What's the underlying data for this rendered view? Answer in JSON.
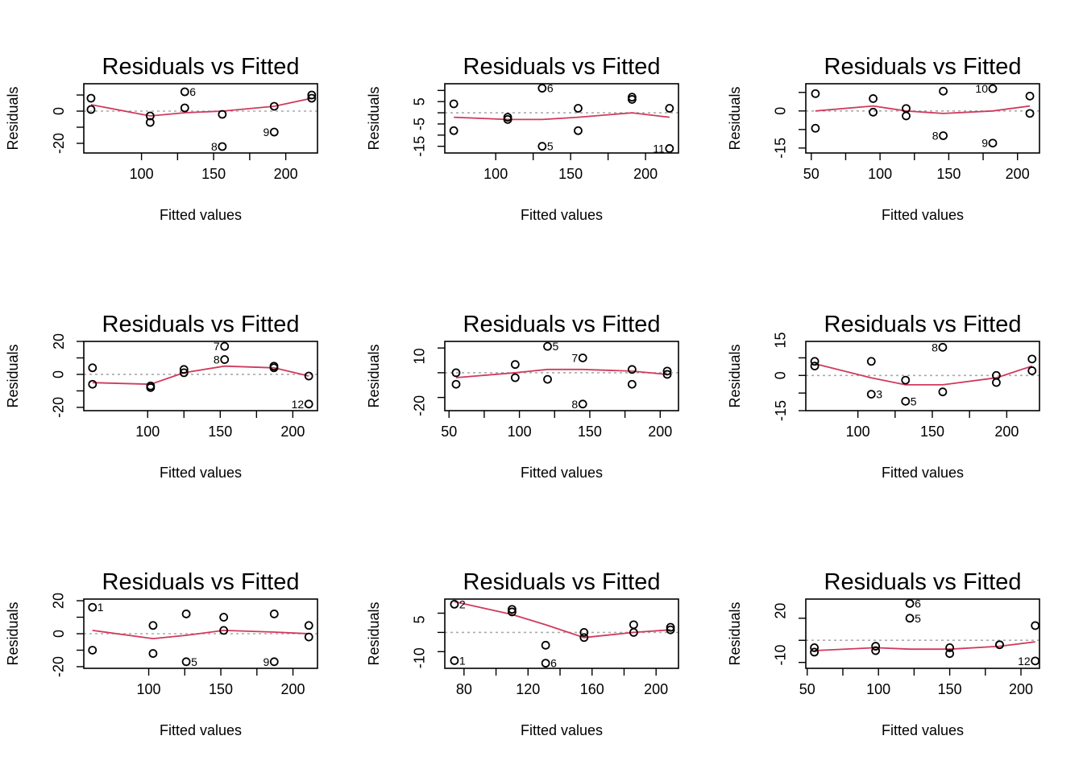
{
  "figure": {
    "layout": "3x3 grid",
    "colors": {
      "smooth": "#D03A5C",
      "zero_line": "#AAAAAA",
      "points": "#000000",
      "frame": "#000000"
    }
  },
  "chart_data": [
    {
      "type": "scatter",
      "title": "Residuals vs Fitted",
      "xlabel": "Fitted values",
      "ylabel": "Residuals",
      "xlim": [
        60,
        222
      ],
      "ylim": [
        -26,
        17
      ],
      "xticks": [
        100,
        150,
        200
      ],
      "yticks": [
        0,
        -20
      ],
      "points": [
        [
          65,
          8
        ],
        [
          65,
          1
        ],
        [
          106,
          -3
        ],
        [
          106,
          -7
        ],
        [
          130,
          12
        ],
        [
          130,
          2
        ],
        [
          156,
          -2
        ],
        [
          156,
          -22
        ],
        [
          192,
          3
        ],
        [
          192,
          -13
        ],
        [
          218,
          10
        ],
        [
          218,
          8
        ]
      ],
      "point_labels": [
        {
          "index": 4,
          "text": "6",
          "side": "right"
        },
        {
          "index": 7,
          "text": "8",
          "side": "left"
        },
        {
          "index": 9,
          "text": "9",
          "side": "left"
        }
      ],
      "smooth": [
        [
          65,
          4
        ],
        [
          106,
          -3
        ],
        [
          130,
          -1
        ],
        [
          156,
          0
        ],
        [
          192,
          3
        ],
        [
          218,
          8
        ]
      ]
    },
    {
      "type": "scatter",
      "title": "Residuals vs Fitted",
      "xlabel": "Fitted values",
      "ylabel": "Residuals",
      "xlim": [
        66,
        222
      ],
      "ylim": [
        -18,
        13
      ],
      "xticks": [
        100,
        150,
        200
      ],
      "yticks": [
        5,
        -5,
        -15
      ],
      "points": [
        [
          72,
          4
        ],
        [
          72,
          -8
        ],
        [
          108,
          -2
        ],
        [
          108,
          -3
        ],
        [
          131,
          11
        ],
        [
          131,
          -15
        ],
        [
          155,
          2
        ],
        [
          155,
          -8
        ],
        [
          191,
          6
        ],
        [
          191,
          7
        ],
        [
          216,
          2
        ],
        [
          216,
          -16
        ]
      ],
      "point_labels": [
        {
          "index": 4,
          "text": "6",
          "side": "right"
        },
        {
          "index": 5,
          "text": "5",
          "side": "right"
        },
        {
          "index": 11,
          "text": "11",
          "side": "left"
        }
      ],
      "smooth": [
        [
          72,
          -2
        ],
        [
          108,
          -3
        ],
        [
          131,
          -3
        ],
        [
          155,
          -2
        ],
        [
          191,
          0
        ],
        [
          216,
          -2
        ]
      ]
    },
    {
      "type": "scatter",
      "title": "Residuals vs Fitted",
      "xlabel": "Fitted values",
      "ylabel": "Residuals",
      "xlim": [
        46,
        216
      ],
      "ylim": [
        -17,
        11
      ],
      "xticks": [
        50,
        100,
        150,
        200
      ],
      "yticks": [
        0,
        -15
      ],
      "points": [
        [
          53,
          7
        ],
        [
          53,
          -7
        ],
        [
          95,
          5
        ],
        [
          95,
          -0.5
        ],
        [
          119,
          1
        ],
        [
          119,
          -2
        ],
        [
          146,
          8
        ],
        [
          146,
          -10
        ],
        [
          182,
          9
        ],
        [
          182,
          -13
        ],
        [
          209,
          6
        ],
        [
          209,
          -1
        ]
      ],
      "point_labels": [
        {
          "index": 7,
          "text": "8",
          "side": "left"
        },
        {
          "index": 8,
          "text": "10",
          "side": "left"
        },
        {
          "index": 9,
          "text": "9",
          "side": "left"
        }
      ],
      "smooth": [
        [
          53,
          0
        ],
        [
          95,
          2
        ],
        [
          119,
          0
        ],
        [
          146,
          -1
        ],
        [
          182,
          0
        ],
        [
          209,
          2
        ]
      ]
    },
    {
      "type": "scatter",
      "title": "Residuals vs Fitted",
      "xlabel": "Fitted values",
      "ylabel": "Residuals",
      "xlim": [
        56,
        217
      ],
      "ylim": [
        -22,
        20
      ],
      "xticks": [
        100,
        150,
        200
      ],
      "yticks": [
        20,
        0,
        -20
      ],
      "points": [
        [
          62,
          4
        ],
        [
          62,
          -6
        ],
        [
          102,
          -7
        ],
        [
          102,
          -8
        ],
        [
          125,
          3
        ],
        [
          125,
          1
        ],
        [
          153,
          17
        ],
        [
          153,
          9
        ],
        [
          187,
          5
        ],
        [
          187,
          4
        ],
        [
          211,
          -1
        ],
        [
          211,
          -18
        ]
      ],
      "point_labels": [
        {
          "index": 6,
          "text": "7",
          "side": "left"
        },
        {
          "index": 7,
          "text": "8",
          "side": "left"
        },
        {
          "index": 11,
          "text": "12",
          "side": "left"
        }
      ],
      "smooth": [
        [
          62,
          -5
        ],
        [
          102,
          -6
        ],
        [
          125,
          1
        ],
        [
          153,
          5
        ],
        [
          187,
          4
        ],
        [
          211,
          -1
        ]
      ]
    },
    {
      "type": "scatter",
      "title": "Residuals vs Fitted",
      "xlabel": "Fitted values",
      "ylabel": "Residuals",
      "xlim": [
        47,
        213
      ],
      "ylim": [
        -23,
        19
      ],
      "xticks": [
        50,
        100,
        150,
        200
      ],
      "yticks": [
        10,
        -20
      ],
      "points": [
        [
          55,
          0
        ],
        [
          55,
          -7
        ],
        [
          97,
          5
        ],
        [
          97,
          -3
        ],
        [
          120,
          16
        ],
        [
          120,
          -4
        ],
        [
          145,
          9
        ],
        [
          145,
          -19
        ],
        [
          180,
          2
        ],
        [
          180,
          -7
        ],
        [
          205,
          1
        ],
        [
          205,
          -1
        ]
      ],
      "point_labels": [
        {
          "index": 4,
          "text": "5",
          "side": "right"
        },
        {
          "index": 6,
          "text": "7",
          "side": "left"
        },
        {
          "index": 7,
          "text": "8",
          "side": "left"
        }
      ],
      "smooth": [
        [
          55,
          -3
        ],
        [
          97,
          0
        ],
        [
          120,
          2
        ],
        [
          145,
          2
        ],
        [
          180,
          1
        ],
        [
          205,
          -1
        ]
      ]
    },
    {
      "type": "scatter",
      "title": "Residuals vs Fitted",
      "xlabel": "Fitted values",
      "ylabel": "Residuals",
      "xlim": [
        65,
        222
      ],
      "ylim": [
        -15,
        14.5
      ],
      "xticks": [
        100,
        150,
        200
      ],
      "yticks": [
        15,
        0,
        -15
      ],
      "points": [
        [
          71,
          6
        ],
        [
          71,
          4
        ],
        [
          109,
          6
        ],
        [
          109,
          -8
        ],
        [
          132,
          -2
        ],
        [
          132,
          -11
        ],
        [
          157,
          12
        ],
        [
          157,
          -7
        ],
        [
          193,
          0
        ],
        [
          193,
          -3
        ],
        [
          217,
          7
        ],
        [
          217,
          2
        ]
      ],
      "point_labels": [
        {
          "index": 3,
          "text": "3",
          "side": "right"
        },
        {
          "index": 5,
          "text": "5",
          "side": "right"
        },
        {
          "index": 6,
          "text": "8",
          "side": "left"
        }
      ],
      "smooth": [
        [
          71,
          5
        ],
        [
          109,
          -1
        ],
        [
          132,
          -4
        ],
        [
          157,
          -4
        ],
        [
          193,
          -1
        ],
        [
          217,
          4
        ]
      ]
    },
    {
      "type": "scatter",
      "title": "Residuals vs Fitted",
      "xlabel": "Fitted values",
      "ylabel": "Residuals",
      "xlim": [
        55,
        217
      ],
      "ylim": [
        -21,
        21
      ],
      "xticks": [
        100,
        150,
        200
      ],
      "yticks": [
        20,
        0,
        -20
      ],
      "points": [
        [
          61,
          16
        ],
        [
          61,
          -10
        ],
        [
          103,
          5
        ],
        [
          103,
          -12
        ],
        [
          126,
          12
        ],
        [
          126,
          -17
        ],
        [
          152,
          10
        ],
        [
          152,
          2
        ],
        [
          187,
          12
        ],
        [
          187,
          -17
        ],
        [
          211,
          5
        ],
        [
          211,
          -2
        ]
      ],
      "point_labels": [
        {
          "index": 0,
          "text": "1",
          "side": "right"
        },
        {
          "index": 5,
          "text": "5",
          "side": "right"
        },
        {
          "index": 9,
          "text": "9",
          "side": "left"
        }
      ],
      "smooth": [
        [
          61,
          2
        ],
        [
          103,
          -3
        ],
        [
          126,
          -1
        ],
        [
          152,
          2
        ],
        [
          187,
          1
        ],
        [
          211,
          0
        ]
      ]
    },
    {
      "type": "scatter",
      "title": "Residuals vs Fitted",
      "xlabel": "Fitted values",
      "ylabel": "Residuals",
      "xlim": [
        68,
        214
      ],
      "ylim": [
        -14,
        13
      ],
      "xticks": [
        80,
        120,
        160,
        200
      ],
      "yticks": [
        5,
        -10
      ],
      "points": [
        [
          74,
          11
        ],
        [
          74,
          -11
        ],
        [
          110,
          9
        ],
        [
          110,
          8
        ],
        [
          131,
          -5
        ],
        [
          131,
          -12
        ],
        [
          155,
          0
        ],
        [
          155,
          -2
        ],
        [
          186,
          3
        ],
        [
          186,
          0
        ],
        [
          209,
          2
        ],
        [
          209,
          1
        ]
      ],
      "point_labels": [
        {
          "index": 0,
          "text": "2",
          "side": "right"
        },
        {
          "index": 1,
          "text": "1",
          "side": "right"
        },
        {
          "index": 5,
          "text": "6",
          "side": "right"
        }
      ],
      "smooth": [
        [
          74,
          12
        ],
        [
          110,
          7
        ],
        [
          131,
          3
        ],
        [
          155,
          -2
        ],
        [
          186,
          0
        ],
        [
          209,
          1
        ]
      ]
    },
    {
      "type": "scatter",
      "title": "Residuals vs Fitted",
      "xlabel": "Fitted values",
      "ylabel": "Residuals",
      "xlim": [
        49,
        213
      ],
      "ylim": [
        -19,
        28
      ],
      "xticks": [
        50,
        100,
        150,
        200
      ],
      "yticks": [
        20,
        -10
      ],
      "points": [
        [
          55,
          -5
        ],
        [
          55,
          -8
        ],
        [
          98,
          -4
        ],
        [
          98,
          -7
        ],
        [
          122,
          25
        ],
        [
          122,
          15
        ],
        [
          150,
          -5
        ],
        [
          150,
          -9
        ],
        [
          185,
          -3
        ],
        [
          185,
          -3
        ],
        [
          210,
          10
        ],
        [
          210,
          -14
        ]
      ],
      "point_labels": [
        {
          "index": 4,
          "text": "6",
          "side": "right"
        },
        {
          "index": 5,
          "text": "5",
          "side": "right"
        },
        {
          "index": 11,
          "text": "12",
          "side": "left"
        }
      ],
      "smooth": [
        [
          55,
          -7
        ],
        [
          98,
          -5
        ],
        [
          122,
          -6
        ],
        [
          150,
          -6
        ],
        [
          185,
          -4
        ],
        [
          210,
          -1
        ]
      ]
    }
  ]
}
